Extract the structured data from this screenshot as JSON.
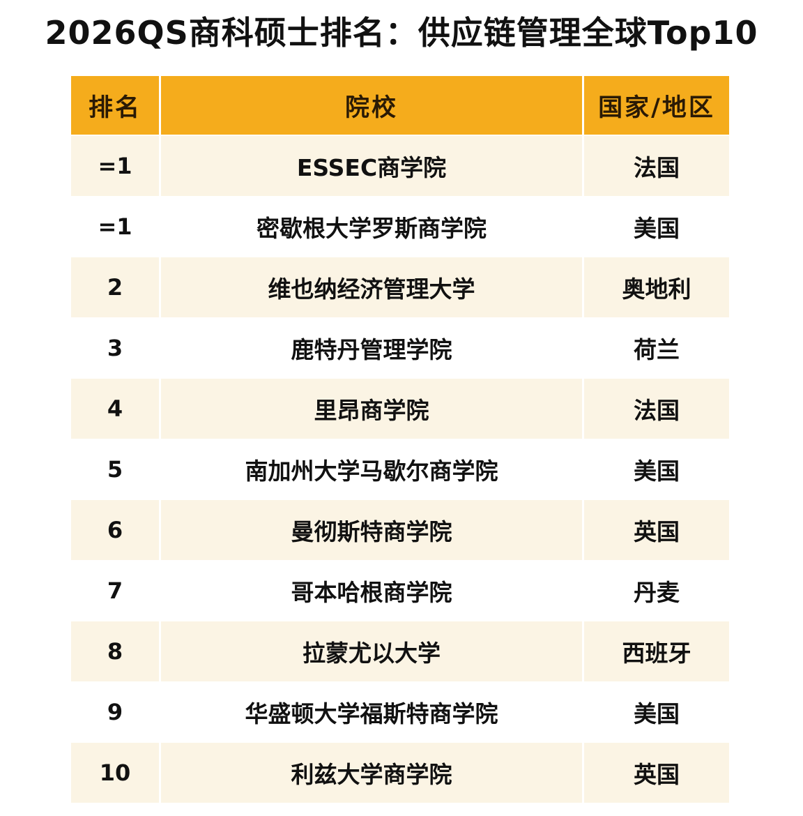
{
  "title": "2026QS商科硕士排名：供应链管理全球Top10",
  "table": {
    "headers": {
      "rank": "排名",
      "school": "院校",
      "country": "国家/地区"
    },
    "rows": [
      {
        "rank": "=1",
        "school": "ESSEC商学院",
        "country": "法国"
      },
      {
        "rank": "=1",
        "school": "密歇根大学罗斯商学院",
        "country": "美国"
      },
      {
        "rank": "2",
        "school": "维也纳经济管理大学",
        "country": "奥地利"
      },
      {
        "rank": "3",
        "school": "鹿特丹管理学院",
        "country": "荷兰"
      },
      {
        "rank": "4",
        "school": "里昂商学院",
        "country": "法国"
      },
      {
        "rank": "5",
        "school": "南加州大学马歇尔商学院",
        "country": "美国"
      },
      {
        "rank": "6",
        "school": "曼彻斯特商学院",
        "country": "英国"
      },
      {
        "rank": "7",
        "school": "哥本哈根商学院",
        "country": "丹麦"
      },
      {
        "rank": "8",
        "school": "拉蒙尤以大学",
        "country": "西班牙"
      },
      {
        "rank": "9",
        "school": "华盛顿大学福斯特商学院",
        "country": "美国"
      },
      {
        "rank": "10",
        "school": "利兹大学商学院",
        "country": "英国"
      }
    ]
  },
  "colors": {
    "header_bg": "#f5ac1c",
    "row_shade": "#fbf4e4",
    "row_plain": "#ffffff"
  }
}
